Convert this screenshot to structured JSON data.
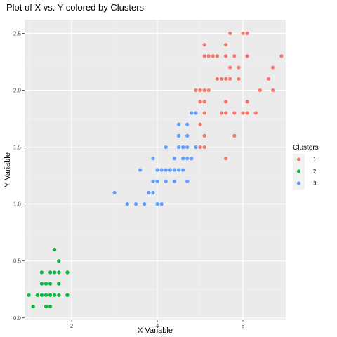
{
  "chart_data": {
    "type": "scatter",
    "title": "Plot of X vs. Y colored by Clusters",
    "xlabel": "X Variable",
    "ylabel": "Y Variable",
    "xlim": [
      0.9,
      7.0
    ],
    "ylim": [
      -0.02,
      2.62
    ],
    "x_ticks": [
      2,
      4,
      6
    ],
    "y_ticks": [
      0.0,
      0.5,
      1.0,
      1.5,
      2.0,
      2.5
    ],
    "x_tick_labels": [
      "2",
      "4",
      "6"
    ],
    "y_tick_labels": [
      "0.0",
      "0.5",
      "1.0",
      "1.5",
      "2.0",
      "2.5"
    ],
    "grid": true,
    "legend": {
      "title": "Clusters",
      "placement": "right"
    },
    "series": [
      {
        "name": "1",
        "color": "#F8766D",
        "points": [
          [
            5.1,
            2.4
          ],
          [
            5.1,
            2.3
          ],
          [
            5.2,
            2.3
          ],
          [
            5.3,
            2.3
          ],
          [
            5.4,
            2.3
          ],
          [
            5.6,
            2.4
          ],
          [
            5.7,
            2.5
          ],
          [
            6.0,
            2.5
          ],
          [
            6.1,
            2.5
          ],
          [
            5.6,
            2.3
          ],
          [
            5.8,
            2.3
          ],
          [
            6.1,
            2.3
          ],
          [
            6.9,
            2.3
          ],
          [
            5.7,
            2.2
          ],
          [
            5.9,
            2.2
          ],
          [
            6.7,
            2.2
          ],
          [
            5.4,
            2.1
          ],
          [
            5.5,
            2.1
          ],
          [
            5.6,
            2.1
          ],
          [
            5.7,
            2.1
          ],
          [
            5.9,
            2.1
          ],
          [
            6.6,
            2.1
          ],
          [
            4.9,
            2.0
          ],
          [
            5.0,
            2.0
          ],
          [
            5.1,
            2.0
          ],
          [
            5.2,
            2.0
          ],
          [
            6.4,
            2.0
          ],
          [
            6.7,
            2.0
          ],
          [
            5.0,
            1.9
          ],
          [
            5.1,
            1.9
          ],
          [
            5.6,
            1.9
          ],
          [
            6.1,
            1.9
          ],
          [
            5.1,
            1.8
          ],
          [
            5.5,
            1.8
          ],
          [
            5.6,
            1.8
          ],
          [
            5.8,
            1.8
          ],
          [
            6.0,
            1.8
          ],
          [
            6.1,
            1.8
          ],
          [
            6.3,
            1.8
          ],
          [
            5.0,
            1.7
          ],
          [
            5.1,
            1.6
          ],
          [
            5.8,
            1.6
          ],
          [
            5.0,
            1.5
          ],
          [
            5.1,
            1.5
          ],
          [
            5.6,
            1.4
          ]
        ]
      },
      {
        "name": "2",
        "color": "#00BA38",
        "points": [
          [
            1.6,
            0.6
          ],
          [
            1.7,
            0.5
          ],
          [
            1.3,
            0.4
          ],
          [
            1.5,
            0.4
          ],
          [
            1.6,
            0.4
          ],
          [
            1.7,
            0.4
          ],
          [
            1.9,
            0.4
          ],
          [
            1.3,
            0.3
          ],
          [
            1.4,
            0.3
          ],
          [
            1.5,
            0.3
          ],
          [
            1.7,
            0.3
          ],
          [
            1.0,
            0.2
          ],
          [
            1.2,
            0.2
          ],
          [
            1.3,
            0.2
          ],
          [
            1.4,
            0.2
          ],
          [
            1.5,
            0.2
          ],
          [
            1.6,
            0.2
          ],
          [
            1.7,
            0.2
          ],
          [
            1.9,
            0.2
          ],
          [
            1.1,
            0.1
          ],
          [
            1.4,
            0.1
          ],
          [
            1.5,
            0.1
          ]
        ]
      },
      {
        "name": "3",
        "color": "#619CFF",
        "points": [
          [
            4.8,
            1.8
          ],
          [
            4.9,
            1.8
          ],
          [
            4.5,
            1.7
          ],
          [
            4.7,
            1.7
          ],
          [
            4.5,
            1.6
          ],
          [
            4.7,
            1.6
          ],
          [
            4.2,
            1.5
          ],
          [
            4.5,
            1.5
          ],
          [
            4.6,
            1.5
          ],
          [
            4.7,
            1.5
          ],
          [
            4.9,
            1.5
          ],
          [
            3.9,
            1.4
          ],
          [
            4.4,
            1.4
          ],
          [
            4.6,
            1.4
          ],
          [
            4.7,
            1.4
          ],
          [
            4.8,
            1.4
          ],
          [
            3.6,
            1.3
          ],
          [
            4.0,
            1.3
          ],
          [
            4.1,
            1.3
          ],
          [
            4.2,
            1.3
          ],
          [
            4.3,
            1.3
          ],
          [
            4.4,
            1.3
          ],
          [
            4.5,
            1.3
          ],
          [
            4.6,
            1.3
          ],
          [
            3.9,
            1.2
          ],
          [
            4.0,
            1.2
          ],
          [
            4.2,
            1.2
          ],
          [
            4.4,
            1.2
          ],
          [
            4.7,
            1.2
          ],
          [
            3.8,
            1.1
          ],
          [
            3.9,
            1.1
          ],
          [
            3.0,
            1.1
          ],
          [
            3.3,
            1.0
          ],
          [
            3.5,
            1.0
          ],
          [
            3.7,
            1.0
          ],
          [
            4.0,
            1.0
          ],
          [
            4.1,
            1.0
          ]
        ]
      }
    ]
  }
}
